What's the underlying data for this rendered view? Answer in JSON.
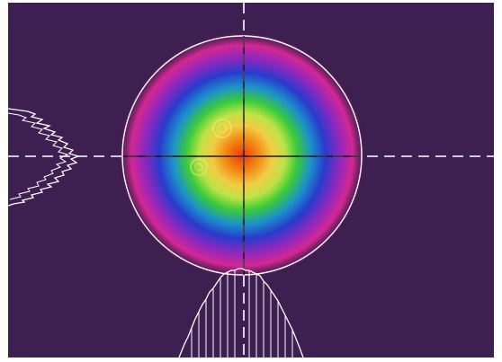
{
  "colors": {
    "background": "#3d1f52",
    "frame": "#ffffff",
    "crosshair": "#ffffff",
    "crosshair_dark": "#1a1020",
    "profile": "#ffffff",
    "aperture_ring": "#ffffff",
    "colormap": [
      "#ff3a12",
      "#ff8a10",
      "#ffd84a",
      "#c8f04a",
      "#3ed63e",
      "#1e9ad6",
      "#2a3fd8",
      "#9a2ac8",
      "#e02a9a",
      "#3d1f52"
    ]
  },
  "icons": {
    "crosshair": "crosshair-icon",
    "aperture": "aperture-circle-icon"
  }
}
